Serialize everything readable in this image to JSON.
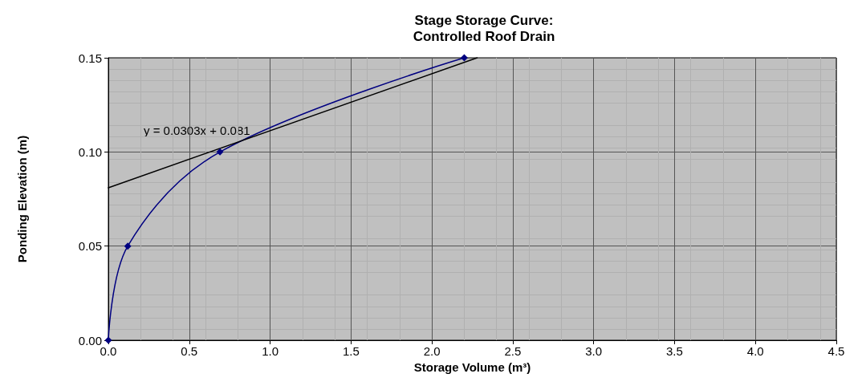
{
  "chart_data": {
    "type": "line",
    "title": "Stage Storage Curve:\nControlled Roof Drain",
    "xlabel": "Storage Volume (m³)",
    "ylabel": "Ponding Elevation (m)",
    "series": [
      {
        "x": [
          0,
          0.12,
          0.69,
          2.2
        ],
        "values": [
          0,
          0.05,
          0.1,
          0.15
        ],
        "color": "#000080",
        "marker": "diamond"
      },
      {
        "x": [
          0,
          2.28
        ],
        "values": [
          0.081,
          0.15
        ],
        "color": "#000000",
        "marker": "none"
      }
    ],
    "xlim": [
      0,
      4.5
    ],
    "xticks": [
      {
        "value": 0,
        "label": "0.0"
      },
      0.5,
      {
        "value": 1,
        "label": "1.0"
      },
      1.5,
      {
        "value": 2,
        "label": "2.0"
      },
      2.5,
      {
        "value": 3,
        "label": "3.0"
      },
      3.5,
      {
        "value": 4,
        "label": "4.0"
      },
      4.5
    ],
    "ylim": [
      0,
      0.15
    ],
    "yticks": [
      {
        "value": 0,
        "label": "0.00"
      },
      0.05,
      {
        "value": 0.1,
        "label": "0.10"
      },
      0.15
    ],
    "grid": true,
    "annotations": [
      "y = 0.0303x + 0.081"
    ]
  }
}
